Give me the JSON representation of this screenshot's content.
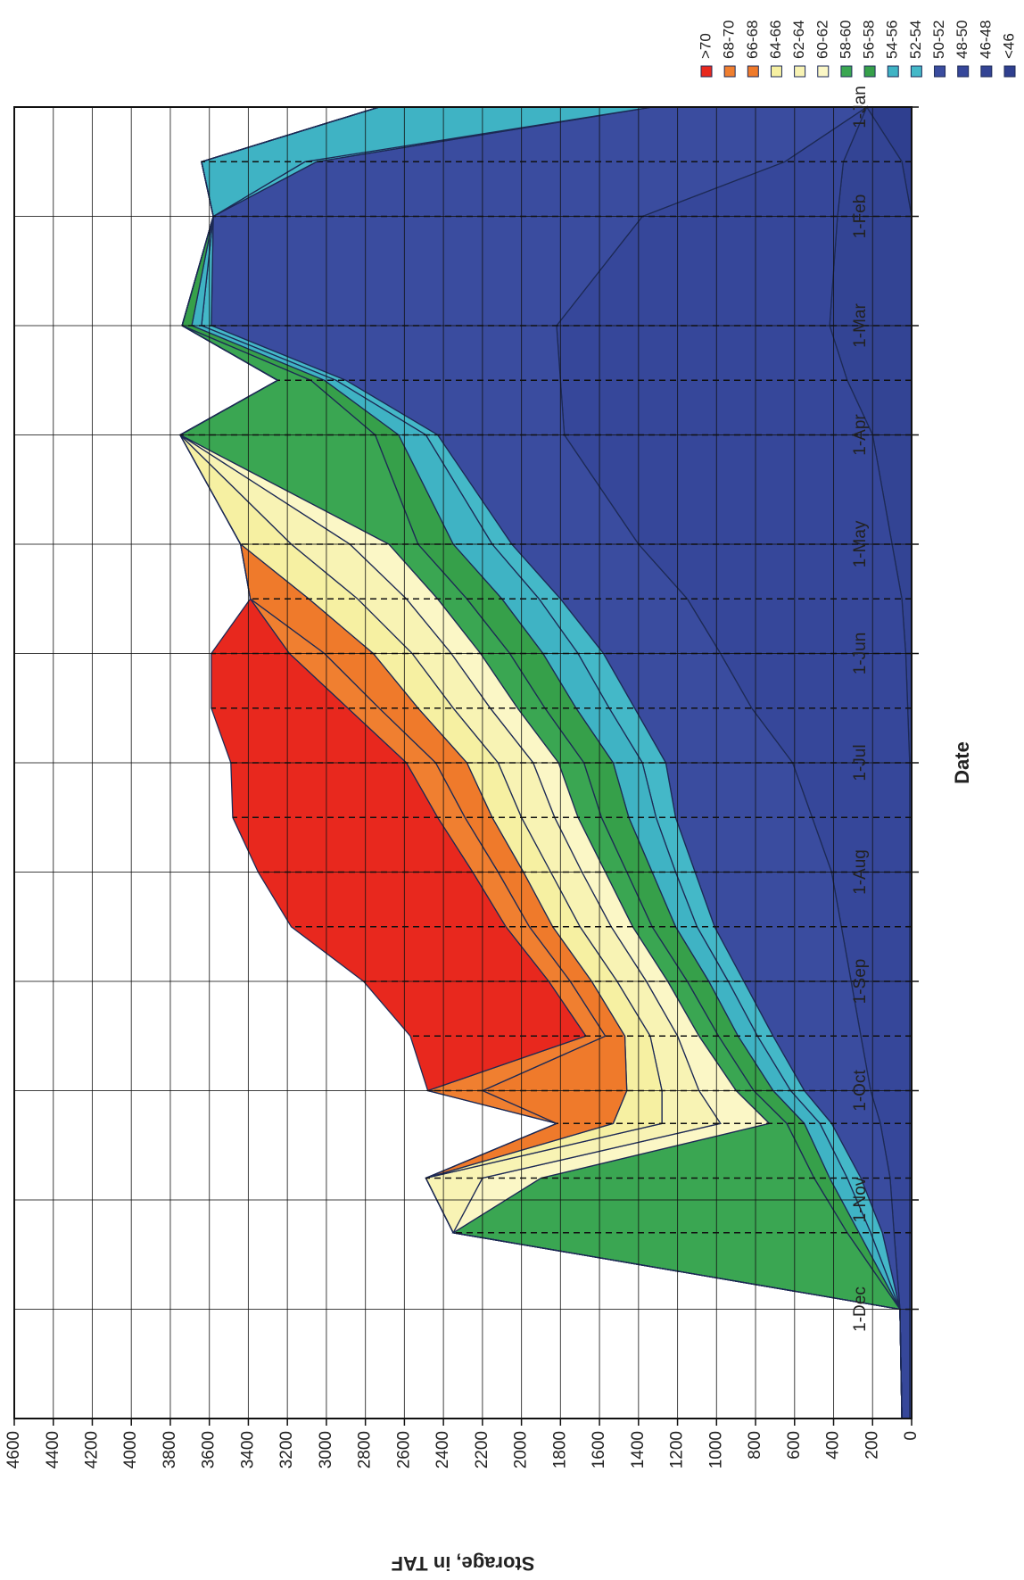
{
  "chart_data": {
    "type": "area",
    "title": "",
    "xlabel": "Date",
    "ylabel": "Storage, in TAF",
    "ylim": [
      0,
      4600
    ],
    "yticks": [
      0,
      200,
      400,
      600,
      800,
      1000,
      1200,
      1400,
      1600,
      1800,
      2000,
      2200,
      2400,
      2600,
      2800,
      3000,
      3200,
      3400,
      3600,
      3800,
      4000,
      4200,
      4400,
      4600
    ],
    "x_tick_labels": [
      "1-Jan",
      "1-Feb",
      "1-Mar",
      "1-Apr",
      "1-May",
      "1-Jun",
      "1-Jul",
      "1-Aug",
      "1-Sep",
      "1-Oct",
      "1-Nov",
      "1-Dec"
    ],
    "x": [
      "1-Jan",
      "15-Jan",
      "1-Feb",
      "1-Mar",
      "15-Mar",
      "1-Apr",
      "1-May",
      "15-May",
      "1-Jun",
      "15-Jun",
      "1-Jul",
      "15-Jul",
      "1-Aug",
      "15-Aug",
      "1-Sep",
      "15-Sep",
      "1-Oct",
      "15-Oct",
      "1-Nov",
      "15-Nov",
      "1-Dec",
      "15-Dec"
    ],
    "grid": true,
    "legend_position": "top",
    "series": [
      {
        "name": "<46",
        "color": "#2f3f8f",
        "values": [
          230,
          50,
          0,
          0,
          0,
          0,
          0,
          0,
          0,
          0,
          0,
          0,
          0,
          0,
          0,
          0,
          0,
          0,
          0,
          0,
          0,
          0
        ]
      },
      {
        "name": "46-48",
        "color": "#334494",
        "values": [
          0,
          300,
          380,
          420,
          330,
          200,
          100,
          50,
          30,
          20,
          10,
          10,
          10,
          10,
          10,
          10,
          10,
          10,
          10,
          10,
          10,
          10
        ]
      },
      {
        "name": "48-50",
        "color": "#36479a",
        "values": [
          0,
          300,
          1000,
          1400,
          1470,
          1580,
          1300,
          1100,
          950,
          800,
          600,
          500,
          400,
          350,
          300,
          250,
          200,
          150,
          100,
          80,
          50,
          40
        ]
      },
      {
        "name": "50-52",
        "color": "#3a4c9f",
        "values": [
          1100,
          2400,
          2200,
          1770,
          1100,
          650,
          650,
          650,
          600,
          600,
          650,
          700,
          700,
          650,
          550,
          450,
          340,
          250,
          150,
          60,
          0,
          0
        ]
      },
      {
        "name": "52-54",
        "color": "#44b8c8",
        "values": [
          0,
          60,
          0,
          50,
          50,
          60,
          100,
          110,
          130,
          130,
          120,
          100,
          100,
          90,
          80,
          80,
          70,
          60,
          70,
          60,
          0,
          0
        ]
      },
      {
        "name": "54-56",
        "color": "#3fb3c4",
        "values": [
          1400,
          530,
          0,
          50,
          60,
          140,
          200,
          190,
          180,
          170,
          150,
          140,
          120,
          110,
          100,
          100,
          90,
          80,
          90,
          60,
          0,
          0
        ]
      },
      {
        "name": "56-58",
        "color": "#36a04a",
        "values": [
          0,
          0,
          0,
          50,
          70,
          120,
          180,
          180,
          170,
          160,
          150,
          140,
          130,
          120,
          110,
          100,
          100,
          90,
          80,
          60,
          0,
          0
        ]
      },
      {
        "name": "58-60",
        "color": "#3aa652",
        "values": [
          0,
          0,
          0,
          0,
          170,
          1000,
          150,
          150,
          150,
          140,
          130,
          120,
          110,
          100,
          100,
          100,
          90,
          90,
          1400,
          2020,
          0,
          0
        ]
      },
      {
        "name": "60-62",
        "color": "#fbf7c6",
        "values": [
          0,
          0,
          0,
          0,
          0,
          0,
          200,
          160,
          150,
          140,
          130,
          120,
          120,
          110,
          110,
          110,
          190,
          250,
          300,
          0,
          0,
          0
        ]
      },
      {
        "name": "62-64",
        "color": "#f8f3b4",
        "values": [
          0,
          0,
          0,
          0,
          0,
          0,
          300,
          250,
          200,
          190,
          180,
          170,
          160,
          160,
          150,
          140,
          190,
          300,
          290,
          0,
          0,
          0
        ]
      },
      {
        "name": "64-66",
        "color": "#f6f0a2",
        "values": [
          0,
          0,
          0,
          0,
          0,
          0,
          260,
          250,
          200,
          180,
          160,
          150,
          140,
          140,
          130,
          130,
          180,
          250,
          0,
          0,
          0,
          0
        ]
      },
      {
        "name": "66-68",
        "color": "#ef7a2b",
        "values": [
          0,
          0,
          0,
          0,
          0,
          0,
          0,
          300,
          250,
          200,
          160,
          140,
          130,
          120,
          110,
          100,
          740,
          290,
          0,
          0,
          0,
          0
        ]
      },
      {
        "name": "68-70",
        "color": "#f07f30",
        "values": [
          0,
          0,
          0,
          0,
          0,
          0,
          0,
          0,
          180,
          160,
          150,
          140,
          130,
          120,
          110,
          100,
          280,
          0,
          0,
          0,
          0,
          0
        ]
      },
      {
        "name": ">70",
        "color": "#e8281e",
        "values": [
          0,
          0,
          0,
          0,
          0,
          0,
          0,
          0,
          400,
          700,
          900,
          1050,
          1100,
          1100,
          950,
          900,
          0,
          0,
          0,
          0,
          0,
          0
        ]
      }
    ]
  }
}
